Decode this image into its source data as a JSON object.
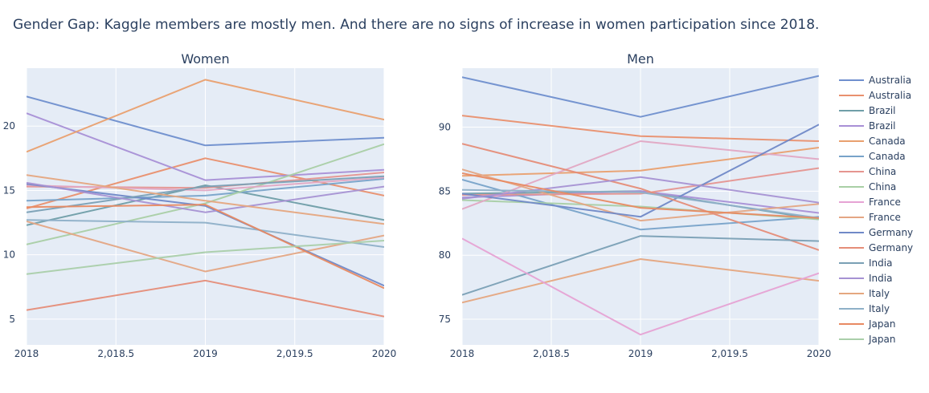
{
  "chart_data": {
    "type": "line",
    "title": "Gender Gap: Kaggle members are mostly men. And there are no signs of increase in women participation since 2018.",
    "x": [
      2018,
      2019,
      2020
    ],
    "x_ticks": [
      "2018",
      "2,018.5",
      "2019",
      "2,019.5",
      "2020"
    ],
    "x_tick_values": [
      2018,
      2018.5,
      2019,
      2019.5,
      2020
    ],
    "grid": true,
    "legend_position": "right",
    "panels": [
      {
        "subtitle": "Women",
        "ylim": [
          3,
          24.5
        ],
        "y_ticks": [
          5,
          10,
          15,
          20
        ],
        "series": [
          {
            "color": "#6f8fce",
            "values": [
              22.3,
              18.5,
              19.1
            ]
          },
          {
            "color": "#e9906e",
            "values": [
              13.6,
              17.5,
              14.6
            ]
          },
          {
            "color": "#6f9ea8",
            "values": [
              12.3,
              15.4,
              12.7
            ]
          },
          {
            "color": "#a890d6",
            "values": [
              21.0,
              15.8,
              16.6
            ]
          },
          {
            "color": "#e9a06f",
            "values": [
              18.0,
              23.6,
              20.5
            ]
          },
          {
            "color": "#78a3c9",
            "values": [
              14.2,
              14.6,
              15.9
            ]
          },
          {
            "color": "#e59590",
            "values": [
              15.3,
              15.2,
              16.4
            ]
          },
          {
            "color": "#a9cfa5",
            "values": [
              10.8,
              14.0,
              18.6
            ]
          },
          {
            "color": "#e2a8c3",
            "values": [
              15.4,
              15.0,
              16.0
            ]
          },
          {
            "color": "#e4a684",
            "values": [
              12.6,
              8.7,
              11.5
            ]
          },
          {
            "color": "#7089c7",
            "values": [
              15.5,
              13.8,
              7.6
            ]
          },
          {
            "color": "#e58d78",
            "values": [
              5.7,
              8.0,
              5.2
            ]
          },
          {
            "color": "#7aa0b5",
            "values": [
              13.3,
              15.3,
              16.1
            ]
          },
          {
            "color": "#a692d3",
            "values": [
              15.6,
              13.3,
              15.3
            ]
          },
          {
            "color": "#e5a77f",
            "values": [
              16.2,
              14.2,
              12.4
            ]
          },
          {
            "color": "#8eb0c8",
            "values": [
              12.7,
              12.5,
              10.6
            ]
          },
          {
            "color": "#e88a62",
            "values": [
              13.7,
              13.9,
              7.4
            ]
          },
          {
            "color": "#aacfaa",
            "values": [
              8.5,
              10.2,
              11.1
            ]
          }
        ]
      },
      {
        "subtitle": "Men",
        "ylim": [
          73,
          94.6
        ],
        "y_ticks": [
          75,
          80,
          85,
          90
        ],
        "series": [
          {
            "color": "#6f8fce",
            "values": [
              93.9,
              90.8,
              94.0
            ]
          },
          {
            "color": "#e9906e",
            "values": [
              90.9,
              89.3,
              88.9
            ]
          },
          {
            "color": "#6f9ea8",
            "values": [
              84.8,
              85.0,
              82.8
            ]
          },
          {
            "color": "#a890d6",
            "values": [
              84.5,
              85.0,
              83.3
            ]
          },
          {
            "color": "#e9a06f",
            "values": [
              86.2,
              86.6,
              88.4
            ]
          },
          {
            "color": "#78a3c9",
            "values": [
              85.9,
              82.0,
              83.0
            ]
          },
          {
            "color": "#e59590",
            "values": [
              84.7,
              84.8,
              86.8
            ]
          },
          {
            "color": "#a9cfa5",
            "values": [
              84.3,
              83.8,
              82.8
            ]
          },
          {
            "color": "#e2a8c3",
            "values": [
              83.6,
              88.9,
              87.5
            ]
          },
          {
            "color": "#e4a684",
            "values": [
              86.7,
              82.7,
              84.0
            ]
          },
          {
            "color": "#7089c7",
            "values": [
              84.8,
              83.0,
              90.2
            ]
          },
          {
            "color": "#e58d78",
            "values": [
              88.7,
              85.2,
              80.4
            ]
          },
          {
            "color": "#7aa0b5",
            "values": [
              76.9,
              81.5,
              81.1
            ]
          },
          {
            "color": "#a692d3",
            "values": [
              84.4,
              86.1,
              84.1
            ]
          },
          {
            "color": "#e5a77f",
            "values": [
              76.3,
              79.7,
              78.0
            ]
          },
          {
            "color": "#8eb0c8",
            "values": [
              85.1,
              84.9,
              82.9
            ]
          },
          {
            "color": "#e88a62",
            "values": [
              86.4,
              83.7,
              82.9
            ]
          },
          {
            "color": "#e6a3d4",
            "values": [
              81.3,
              73.8,
              78.6
            ]
          }
        ]
      }
    ],
    "legend": [
      {
        "label": "Australia",
        "color": "#6f8fce"
      },
      {
        "label": "Australia",
        "color": "#e9906e"
      },
      {
        "label": "Brazil",
        "color": "#6f9ea8"
      },
      {
        "label": "Brazil",
        "color": "#a890d6"
      },
      {
        "label": "Canada",
        "color": "#e9a06f"
      },
      {
        "label": "Canada",
        "color": "#78a3c9"
      },
      {
        "label": "China",
        "color": "#e59590"
      },
      {
        "label": "China",
        "color": "#a9cfa5"
      },
      {
        "label": "France",
        "color": "#e6a3d4"
      },
      {
        "label": "France",
        "color": "#e4a684"
      },
      {
        "label": "Germany",
        "color": "#7089c7"
      },
      {
        "label": "Germany",
        "color": "#e58d78"
      },
      {
        "label": "India",
        "color": "#7aa0b5"
      },
      {
        "label": "India",
        "color": "#a692d3"
      },
      {
        "label": "Italy",
        "color": "#e5a77f"
      },
      {
        "label": "Italy",
        "color": "#8eb0c8"
      },
      {
        "label": "Japan",
        "color": "#e88a62"
      },
      {
        "label": "Japan",
        "color": "#aacfaa"
      }
    ],
    "colors": {
      "plot_background": "#e5ecf6",
      "grid": "#ffffff",
      "text": "#2a3f5f"
    }
  }
}
